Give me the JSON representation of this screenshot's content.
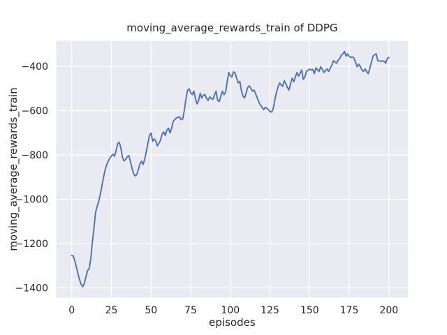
{
  "figure": {
    "title": "moving_average_rewards_train of DDPG",
    "xlabel": "episodes",
    "ylabel": "moving_average_rewards_train"
  },
  "chart_data": {
    "type": "line",
    "title": "moving_average_rewards_train of DDPG",
    "xlabel": "episodes",
    "ylabel": "moving_average_rewards_train",
    "x_start": 0,
    "x_step": 1,
    "x_end": 200,
    "values": [
      -1253,
      -1257,
      -1280,
      -1308,
      -1338,
      -1365,
      -1385,
      -1395,
      -1378,
      -1348,
      -1322,
      -1313,
      -1268,
      -1194,
      -1130,
      -1060,
      -1032,
      -1010,
      -978,
      -940,
      -903,
      -868,
      -845,
      -828,
      -815,
      -804,
      -797,
      -806,
      -780,
      -748,
      -743,
      -770,
      -812,
      -827,
      -820,
      -808,
      -803,
      -830,
      -860,
      -885,
      -895,
      -888,
      -866,
      -840,
      -828,
      -843,
      -820,
      -785,
      -748,
      -712,
      -701,
      -738,
      -728,
      -737,
      -759,
      -747,
      -733,
      -706,
      -696,
      -712,
      -687,
      -680,
      -701,
      -678,
      -649,
      -640,
      -633,
      -630,
      -628,
      -641,
      -637,
      -598,
      -548,
      -508,
      -502,
      -520,
      -528,
      -512,
      -545,
      -570,
      -555,
      -522,
      -543,
      -530,
      -528,
      -545,
      -554,
      -538,
      -545,
      -549,
      -530,
      -512,
      -554,
      -559,
      -535,
      -512,
      -528,
      -518,
      -470,
      -428,
      -442,
      -448,
      -425,
      -430,
      -455,
      -475,
      -468,
      -510,
      -535,
      -543,
      -520,
      -495,
      -488,
      -500,
      -512,
      -508,
      -525,
      -543,
      -562,
      -575,
      -585,
      -596,
      -585,
      -589,
      -596,
      -604,
      -607,
      -592,
      -554,
      -520,
      -496,
      -475,
      -483,
      -491,
      -465,
      -478,
      -496,
      -507,
      -478,
      -454,
      -470,
      -448,
      -428,
      -444,
      -432,
      -417,
      -459,
      -448,
      -423,
      -418,
      -413,
      -416,
      -414,
      -433,
      -407,
      -416,
      -423,
      -402,
      -413,
      -428,
      -419,
      -412,
      -423,
      -409,
      -395,
      -375,
      -381,
      -386,
      -372,
      -365,
      -350,
      -344,
      -333,
      -354,
      -344,
      -355,
      -360,
      -358,
      -363,
      -382,
      -402,
      -391,
      -401,
      -417,
      -423,
      -412,
      -424,
      -433,
      -408,
      -381,
      -354,
      -348,
      -344,
      -375,
      -376,
      -377,
      -376,
      -377,
      -386,
      -365,
      -360
    ],
    "xlim": [
      -9.8,
      212.1
    ],
    "ylim": [
      -1444.7,
      -285.0
    ],
    "xticks": {
      "values": [
        0,
        25,
        50,
        75,
        100,
        125,
        150,
        175,
        200
      ],
      "labels": [
        "0",
        "25",
        "50",
        "75",
        "100",
        "125",
        "150",
        "175",
        "200"
      ]
    },
    "yticks": {
      "values": [
        -400,
        -600,
        -800,
        -1000,
        -1200,
        -1400
      ],
      "labels": [
        "−400",
        "−600",
        "−800",
        "−1000",
        "−1200",
        "−1400"
      ]
    },
    "grid": true,
    "legend": null,
    "line_color": "#4c72b0",
    "plot_bg": "#eaeaf2",
    "grid_color": "#ffffff",
    "text_color": "#262626",
    "fig_bg": "#ffffff"
  }
}
